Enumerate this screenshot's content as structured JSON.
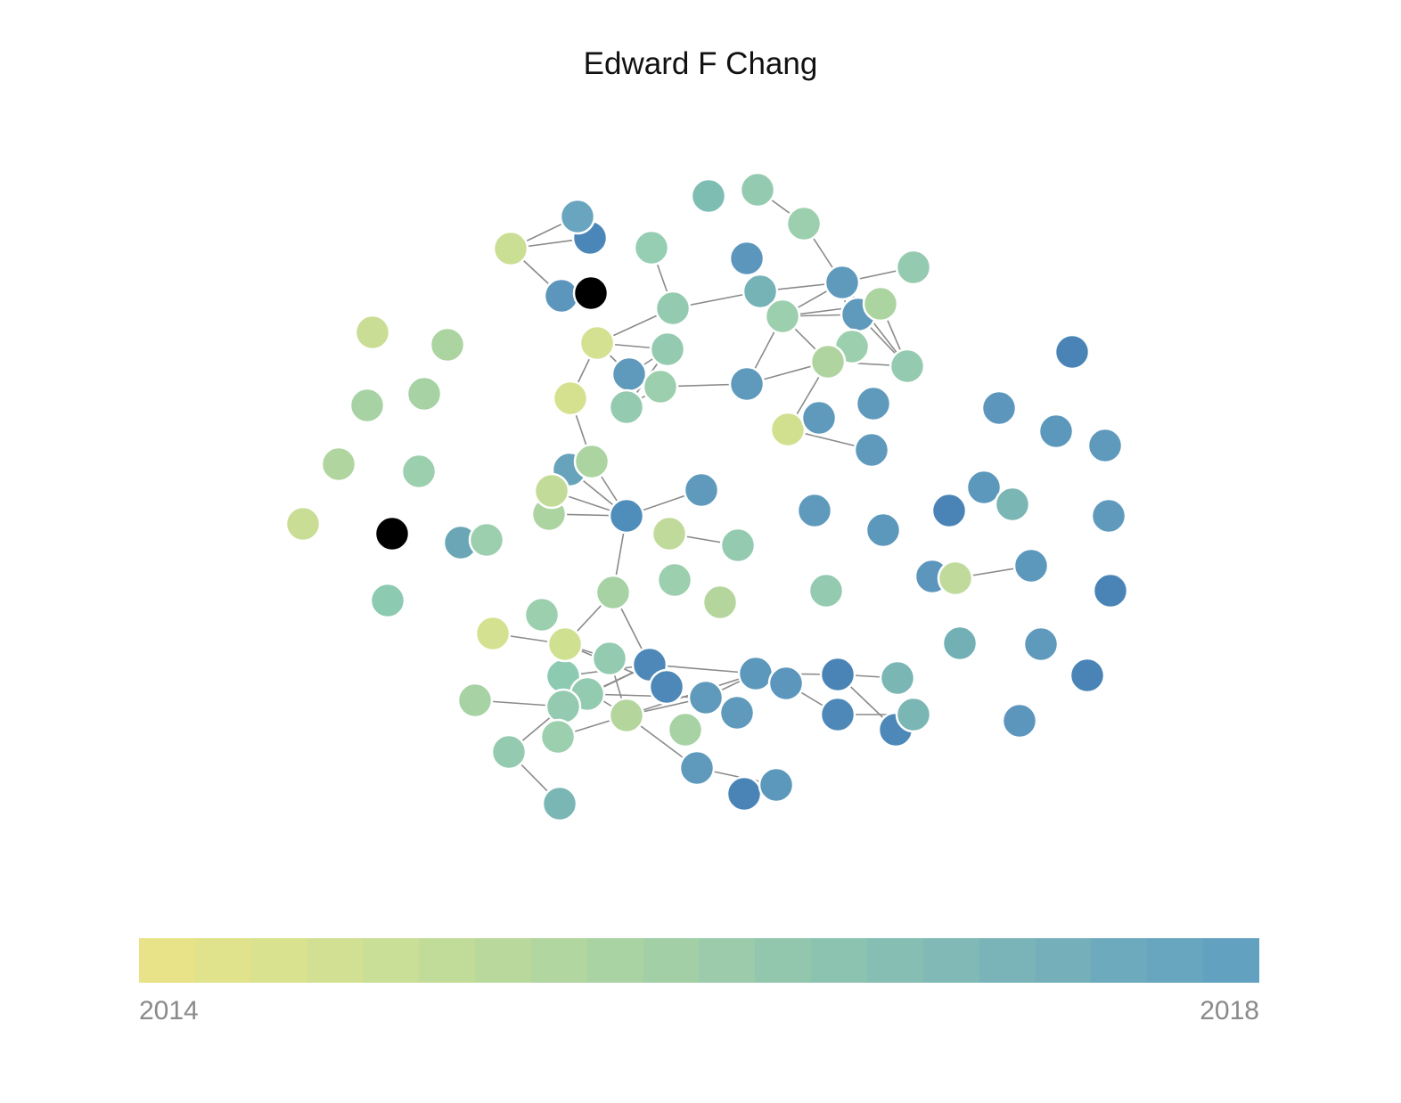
{
  "title": "Edward F Chang",
  "legend": {
    "min_label": "2014",
    "max_label": "2018",
    "colors": [
      "#e8e388",
      "#e0e38b",
      "#d9e28f",
      "#d1e092",
      "#c9de96",
      "#c1dc99",
      "#b9d99c",
      "#b1d6a0",
      "#a9d3a3",
      "#a2cfa6",
      "#9bcbaa",
      "#93c7ad",
      "#8cc3b0",
      "#86beb3",
      "#80b9b6",
      "#7ab4b8",
      "#74afba",
      "#6eaabd",
      "#68a6bf",
      "#63a1c1"
    ]
  },
  "graph": {
    "nodes": [
      {
        "id": 1,
        "color": "#94cbb0"
      },
      {
        "id": 2,
        "color": "#7ebdb2"
      },
      {
        "id": 3,
        "color": "#9ccfad"
      },
      {
        "id": 4,
        "color": "#4b86b8"
      },
      {
        "id": 5,
        "color": "#6aa5bf"
      },
      {
        "id": 6,
        "color": "#cadf94"
      },
      {
        "id": 7,
        "color": "#95ceb2"
      },
      {
        "id": 8,
        "color": "#5d96bd"
      },
      {
        "id": 9,
        "color": "#5d96bd"
      },
      {
        "id": 10,
        "color": "#000000"
      },
      {
        "id": 11,
        "color": "#75b3b6"
      },
      {
        "id": 12,
        "color": "#5f9abc"
      },
      {
        "id": 13,
        "color": "#94cbb0"
      },
      {
        "id": 14,
        "color": "#9ccfad"
      },
      {
        "id": 15,
        "color": "#5f9abc"
      },
      {
        "id": 16,
        "color": "#acd4a0"
      },
      {
        "id": 17,
        "color": "#5c98bc"
      },
      {
        "id": 18,
        "color": "#94cbb0"
      },
      {
        "id": 19,
        "color": "#c9dd95"
      },
      {
        "id": 20,
        "color": "#acd4a0"
      },
      {
        "id": 21,
        "color": "#d3e191"
      },
      {
        "id": 22,
        "color": "#94cbb0"
      },
      {
        "id": 23,
        "color": "#9ccfad"
      },
      {
        "id": 24,
        "color": "#4a84b6"
      },
      {
        "id": 25,
        "color": "#5f9abc"
      },
      {
        "id": 26,
        "color": "#b0d49f"
      },
      {
        "id": 27,
        "color": "#94cbb0"
      },
      {
        "id": 28,
        "color": "#5f9abc"
      },
      {
        "id": 29,
        "color": "#d5e18e"
      },
      {
        "id": 30,
        "color": "#5f9abc"
      },
      {
        "id": 31,
        "color": "#d1e08f"
      },
      {
        "id": 32,
        "color": "#94cbb0"
      },
      {
        "id": 33,
        "color": "#5f9abc"
      },
      {
        "id": 34,
        "color": "#5d96bd"
      },
      {
        "id": 35,
        "color": "#5c98bc"
      },
      {
        "id": 36,
        "color": "#a6d2a4"
      },
      {
        "id": 37,
        "color": "#a6d2a4"
      },
      {
        "id": 38,
        "color": "#9ccfad"
      },
      {
        "id": 39,
        "color": "#9ccfad"
      },
      {
        "id": 40,
        "color": "#b1d59f"
      },
      {
        "id": 41,
        "color": "#9ccfad"
      },
      {
        "id": 42,
        "color": "#c9dd95"
      },
      {
        "id": 43,
        "color": "#000000"
      },
      {
        "id": 44,
        "color": "#6aa6b6"
      },
      {
        "id": 45,
        "color": "#9ccfad"
      },
      {
        "id": 46,
        "color": "#8ccab2"
      },
      {
        "id": 47,
        "color": "#67a3bb"
      },
      {
        "id": 48,
        "color": "#acd4a0"
      },
      {
        "id": 49,
        "color": "#c3db98"
      },
      {
        "id": 50,
        "color": "#acd4a0"
      },
      {
        "id": 51,
        "color": "#4f8dbb"
      },
      {
        "id": 52,
        "color": "#5f9abc"
      },
      {
        "id": 53,
        "color": "#bfda9b"
      },
      {
        "id": 54,
        "color": "#94cbb0"
      },
      {
        "id": 55,
        "color": "#a6d2a4"
      },
      {
        "id": 56,
        "color": "#9ccfad"
      },
      {
        "id": 57,
        "color": "#b4d69d"
      },
      {
        "id": 58,
        "color": "#d3e191"
      },
      {
        "id": 59,
        "color": "#9ccfad"
      },
      {
        "id": 60,
        "color": "#cfe091"
      },
      {
        "id": 61,
        "color": "#8ccab2"
      },
      {
        "id": 62,
        "color": "#5f9abc"
      },
      {
        "id": 63,
        "color": "#5c98bc"
      },
      {
        "id": 64,
        "color": "#5f9abc"
      },
      {
        "id": 65,
        "color": "#4a84b6"
      },
      {
        "id": 66,
        "color": "#4a84b6"
      },
      {
        "id": 67,
        "color": "#4d88b8"
      },
      {
        "id": 68,
        "color": "#7ab6b4"
      },
      {
        "id": 69,
        "color": "#bfda9b"
      },
      {
        "id": 70,
        "color": "#94cbb0"
      },
      {
        "id": 71,
        "color": "#93cbb0"
      },
      {
        "id": 72,
        "color": "#94cbb0"
      },
      {
        "id": 73,
        "color": "#4e88b8"
      },
      {
        "id": 74,
        "color": "#5c98bc"
      },
      {
        "id": 75,
        "color": "#5d96bd"
      },
      {
        "id": 76,
        "color": "#5f9abc"
      },
      {
        "id": 77,
        "color": "#4a84b6"
      },
      {
        "id": 78,
        "color": "#4d88b8"
      },
      {
        "id": 79,
        "color": "#4d88b8"
      },
      {
        "id": 80,
        "color": "#7ab6b4"
      },
      {
        "id": 81,
        "color": "#7ab6b4"
      },
      {
        "id": 82,
        "color": "#b4d69d"
      },
      {
        "id": 83,
        "color": "#a6d2a4"
      },
      {
        "id": 84,
        "color": "#a6d2a4"
      },
      {
        "id": 85,
        "color": "#5c98bc"
      },
      {
        "id": 86,
        "color": "#5f9abc"
      },
      {
        "id": 87,
        "color": "#4a84b6"
      },
      {
        "id": 88,
        "color": "#4d88b8"
      },
      {
        "id": 89,
        "color": "#4e88b8"
      },
      {
        "id": 90,
        "color": "#5c98bc"
      },
      {
        "id": 91,
        "color": "#5d96bd"
      },
      {
        "id": 92,
        "color": "#5c98bc"
      },
      {
        "id": 93,
        "color": "#5f9abc"
      },
      {
        "id": 94,
        "color": "#72b0b5"
      },
      {
        "id": 95,
        "color": "#7ab6b4"
      },
      {
        "id": 96,
        "color": "#5f9abc"
      },
      {
        "id": 97,
        "color": "#4a84b6"
      },
      {
        "id": 98,
        "color": "#5d96bd"
      },
      {
        "id": 99,
        "color": "#5f9abc"
      },
      {
        "id": 100,
        "color": "#4e88b8"
      },
      {
        "id": 101,
        "color": "#5f9abc"
      },
      {
        "id": 102,
        "color": "#5c98bc"
      },
      {
        "id": 103,
        "color": "#5f9abc"
      },
      {
        "id": 104,
        "color": "#4f8dbb"
      },
      {
        "id": 105,
        "color": "#5f9abc"
      },
      {
        "id": 106,
        "color": "#4a84b6"
      },
      {
        "id": 107,
        "color": "#5c98bc"
      },
      {
        "id": 108,
        "color": "#4d88b8"
      },
      {
        "id": 109,
        "color": "#7ab6b4"
      },
      {
        "id": 110,
        "color": "#4f8dbb"
      },
      {
        "id": 111,
        "color": "#9ccfad"
      },
      {
        "id": 112,
        "color": "#94cbb0"
      },
      {
        "id": 113,
        "color": "#a6d2a4"
      }
    ]
  }
}
